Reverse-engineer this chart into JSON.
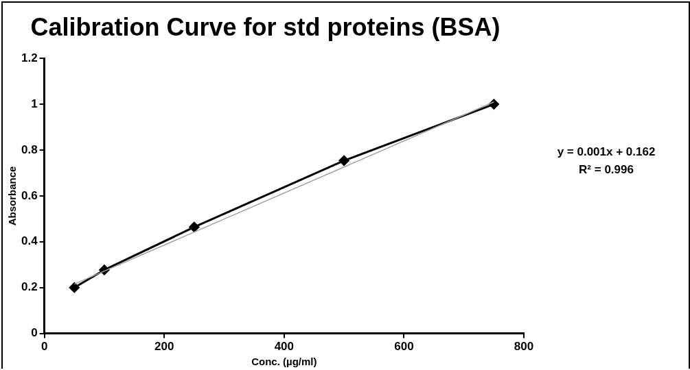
{
  "chart_data": {
    "type": "line",
    "title": "Calibration Curve for std proteins (BSA)",
    "xlabel": "Conc. (µg/ml)",
    "ylabel": "Absorbance",
    "xlim": [
      0,
      800
    ],
    "xticks": [
      0,
      200,
      400,
      600,
      800
    ],
    "ylim": [
      0,
      1.2
    ],
    "yticks": [
      0,
      0.2,
      0.4,
      0.6,
      0.8,
      1,
      1.2
    ],
    "grid": false,
    "legend": false,
    "series": [
      {
        "color": "#000000",
        "marker": "diamond",
        "line_style": "solid",
        "x": [
          50,
          100,
          250,
          500,
          750
        ],
        "values": [
          0.2,
          0.277,
          0.464,
          0.754,
          1.0
        ]
      },
      {
        "color": "#a0a0a0",
        "marker": "none",
        "line_style": "solid",
        "x": [
          50,
          750
        ],
        "values": [
          0.215,
          1.01
        ]
      }
    ],
    "annotations": [
      "y = 0.001x + 0.162",
      "R² = 0.996"
    ]
  }
}
